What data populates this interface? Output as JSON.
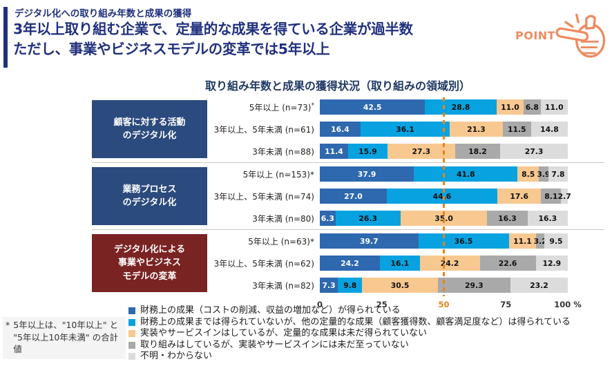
{
  "header": {
    "eyebrow": "デジタル化への取り組み年数と成果の獲得",
    "headline_line1": "3年以上取り組む企業で、定量的な成果を得ている企業が過半数",
    "headline_line2": "ただし、事業やビジネスモデルの変革では5年以上",
    "point_label": "POINT",
    "accent_color": "#20307E",
    "point_color": "#EE8B61"
  },
  "chart_data": {
    "type": "bar",
    "orientation": "horizontal",
    "stacked": true,
    "title": "取り組み年数と成果の獲得状況（取り組みの領域別）",
    "xlabel": "",
    "ylabel": "",
    "xlim": [
      0,
      100
    ],
    "x_ticks": [
      {
        "value": 0,
        "label": "0",
        "highlight": false
      },
      {
        "value": 25,
        "label": "25",
        "highlight": false
      },
      {
        "value": 50,
        "label": "50",
        "highlight": true
      },
      {
        "value": 75,
        "label": "75",
        "highlight": false
      },
      {
        "value": 100,
        "label": "100 %",
        "highlight": false
      }
    ],
    "reference_line": {
      "value": 50,
      "style": "dashed",
      "color": "#E8831C"
    },
    "legend_position": "bottom-left",
    "series": [
      {
        "name": "財務上の成果（コストの削減、収益の増加など）が得られている",
        "color": "#2E68AE",
        "text_color": "#FFFFFF"
      },
      {
        "name": "財務上の成果までは得られていないが、他の定量的な成果（顧客獲得数、顧客満足度など）は得られている",
        "color": "#09A2E0",
        "text_color": "#111111"
      },
      {
        "name": "実装やサービスインはしているが、定量的な成果は未だ得られていない",
        "color": "#F8C891",
        "text_color": "#111111"
      },
      {
        "name": "取り組みはしているが、実装やサービスインには未だ至っていない",
        "color": "#A9A9A9",
        "text_color": "#111111"
      },
      {
        "name": "不明・わからない",
        "color": "#DCDCDC",
        "text_color": "#111111"
      }
    ],
    "groups": [
      {
        "label_lines": [
          "顧客に対する活動",
          "のデジタル化"
        ],
        "box_color": "#2B4A7D",
        "rows": [
          {
            "label": "5年以上 (n=73)",
            "sup_asterisk": true,
            "values": [
              42.5,
              28.8,
              11.0,
              6.8,
              11.0
            ],
            "value_labels": [
              "42.5",
              "28.8",
              "11.0",
              "6.8",
              "11.0"
            ]
          },
          {
            "label": "3年以上、5年未満 (n=61)",
            "sup_asterisk": false,
            "values": [
              16.4,
              36.1,
              21.3,
              11.5,
              14.8
            ],
            "value_labels": [
              "16.4",
              "36.1",
              "21.3",
              "11.5",
              "14.8"
            ]
          },
          {
            "label": "3年未満 (n=88)",
            "sup_asterisk": false,
            "values": [
              11.4,
              15.9,
              27.3,
              18.2,
              27.3
            ],
            "value_labels": [
              "11.4",
              "15.9",
              "27.3",
              "18.2",
              "27.3"
            ]
          }
        ]
      },
      {
        "label_lines": [
          "業務プロセス",
          "のデジタル化"
        ],
        "box_color": "#2B4A7D",
        "rows": [
          {
            "label": "5年以上 (n=153)*",
            "sup_asterisk": false,
            "values": [
              37.9,
              41.8,
              8.5,
              3.9,
              7.8
            ],
            "value_labels": [
              "37.9",
              "41.8",
              "8.5",
              "3.9",
              "7.8"
            ]
          },
          {
            "label": "3年以上、5年未満 (n=74)",
            "sup_asterisk": false,
            "values": [
              27.0,
              44.6,
              17.6,
              8.1,
              2.7
            ],
            "value_labels": [
              "27.0",
              "44.6",
              "17.6",
              "8.1",
              "2.7"
            ]
          },
          {
            "label": "3年未満 (n=80)",
            "sup_asterisk": false,
            "values": [
              6.3,
              26.3,
              35.0,
              16.3,
              16.3
            ],
            "value_labels": [
              "6.3",
              "26.3",
              "35.0",
              "16.3",
              "16.3"
            ]
          }
        ]
      },
      {
        "label_lines": [
          "デジタル化による",
          "事業やビジネス",
          "モデルの変革"
        ],
        "box_color": "#7A2323",
        "rows": [
          {
            "label": "5年以上 (n=63)*",
            "sup_asterisk": false,
            "values": [
              39.7,
              36.5,
              11.1,
              3.2,
              9.5
            ],
            "value_labels": [
              "39.7",
              "36.5",
              "11.1",
              "3.2",
              "9.5"
            ]
          },
          {
            "label": "3年以上、5年未満 (n=62)",
            "sup_asterisk": false,
            "values": [
              24.2,
              16.1,
              24.2,
              22.6,
              12.9
            ],
            "value_labels": [
              "24.2",
              "16.1",
              "24.2",
              "22.6",
              "12.9"
            ]
          },
          {
            "label": "3年未満 (n=82)",
            "sup_asterisk": false,
            "values": [
              7.3,
              9.8,
              30.5,
              29.3,
              23.2
            ],
            "value_labels": [
              "7.3",
              "9.8",
              "30.5",
              "29.3",
              "23.2"
            ]
          }
        ]
      }
    ]
  },
  "footnote": {
    "marker": "*",
    "text": "5年以上は、\"10年以上\" と \"5年以上10年未満\" の合計値"
  }
}
